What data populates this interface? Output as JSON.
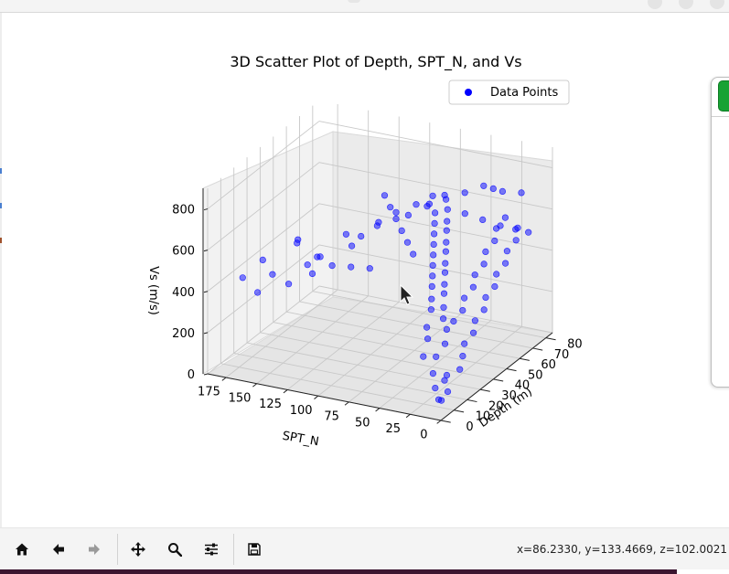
{
  "window": {
    "title": ""
  },
  "figure": {
    "title": "3D Scatter Plot of Depth, SPT_N, and Vs",
    "legend": {
      "label": "Data Points",
      "placement": "top-right"
    },
    "axes": {
      "x": {
        "label": "Depth (m)",
        "ticks": [
          "0",
          "10",
          "20",
          "30",
          "40",
          "50",
          "60",
          "70",
          "80"
        ]
      },
      "y": {
        "label": "SPT_N",
        "ticks": [
          "175",
          "150",
          "125",
          "100",
          "75",
          "50",
          "25",
          "0"
        ]
      },
      "z": {
        "label": "Vs (m/s)",
        "ticks": [
          "0",
          "200",
          "400",
          "600",
          "800"
        ]
      }
    }
  },
  "chart_data": {
    "type": "scatter",
    "projection": "3d",
    "title": "3D Scatter Plot of Depth, SPT_N, and Vs",
    "xlabel": "Depth (m)",
    "ylabel": "SPT_N",
    "zlabel": "Vs (m/s)",
    "xlim": [
      0,
      85
    ],
    "ylim": [
      0,
      190
    ],
    "zlim": [
      0,
      900
    ],
    "grid": true,
    "legend_placement": "top-right",
    "series": [
      {
        "name": "Data Points",
        "color": "#0000ff",
        "alpha": 0.5,
        "points": [
          [
            5,
            10,
            120
          ],
          [
            8,
            15,
            170
          ],
          [
            12,
            8,
            150
          ],
          [
            15,
            20,
            210
          ],
          [
            10,
            25,
            230
          ],
          [
            20,
            18,
            250
          ],
          [
            18,
            30,
            270
          ],
          [
            25,
            22,
            290
          ],
          [
            22,
            35,
            300
          ],
          [
            28,
            28,
            320
          ],
          [
            30,
            40,
            340
          ],
          [
            32,
            32,
            350
          ],
          [
            35,
            45,
            360
          ],
          [
            38,
            38,
            380
          ],
          [
            40,
            50,
            390
          ],
          [
            42,
            42,
            400
          ],
          [
            45,
            55,
            410
          ],
          [
            48,
            48,
            420
          ],
          [
            50,
            60,
            430
          ],
          [
            52,
            52,
            440
          ],
          [
            55,
            65,
            450
          ],
          [
            58,
            58,
            460
          ],
          [
            60,
            70,
            470
          ],
          [
            62,
            62,
            480
          ],
          [
            65,
            75,
            490
          ],
          [
            68,
            68,
            500
          ],
          [
            70,
            80,
            510
          ],
          [
            72,
            72,
            520
          ],
          [
            75,
            85,
            530
          ],
          [
            78,
            78,
            540
          ],
          [
            35,
            60,
            560
          ],
          [
            40,
            70,
            580
          ],
          [
            45,
            80,
            600
          ],
          [
            50,
            90,
            620
          ],
          [
            55,
            100,
            640
          ],
          [
            60,
            110,
            660
          ],
          [
            30,
            90,
            480
          ],
          [
            25,
            100,
            500
          ],
          [
            20,
            110,
            520
          ],
          [
            35,
            110,
            540
          ],
          [
            40,
            120,
            560
          ],
          [
            45,
            100,
            600
          ],
          [
            50,
            80,
            650
          ],
          [
            55,
            70,
            680
          ],
          [
            60,
            60,
            700
          ],
          [
            65,
            50,
            720
          ],
          [
            70,
            40,
            740
          ],
          [
            75,
            30,
            700
          ],
          [
            80,
            20,
            680
          ],
          [
            82,
            45,
            660
          ],
          [
            15,
            140,
            420
          ],
          [
            10,
            160,
            380
          ],
          [
            8,
            170,
            450
          ],
          [
            12,
            150,
            470
          ],
          [
            20,
            130,
            500
          ],
          [
            25,
            125,
            520
          ],
          [
            18,
            120,
            560
          ],
          [
            22,
            140,
            600
          ],
          [
            28,
            95,
            640
          ],
          [
            32,
            85,
            700
          ],
          [
            36,
            75,
            740
          ],
          [
            42,
            65,
            760
          ],
          [
            48,
            58,
            780
          ],
          [
            38,
            50,
            800
          ],
          [
            44,
            44,
            820
          ],
          [
            52,
            36,
            700
          ],
          [
            58,
            28,
            650
          ],
          [
            64,
            20,
            600
          ],
          [
            70,
            14,
            560
          ],
          [
            76,
            10,
            520
          ],
          [
            3,
            5,
            80
          ],
          [
            6,
            6,
            60
          ],
          [
            9,
            4,
            90
          ],
          [
            14,
            12,
            110
          ],
          [
            20,
            6,
            140
          ],
          [
            26,
            10,
            170
          ],
          [
            31,
            14,
            200
          ],
          [
            36,
            12,
            230
          ],
          [
            41,
            16,
            260
          ],
          [
            46,
            14,
            290
          ],
          [
            51,
            18,
            320
          ],
          [
            56,
            16,
            350
          ],
          [
            61,
            20,
            380
          ],
          [
            66,
            18,
            410
          ],
          [
            71,
            22,
            440
          ],
          [
            76,
            20,
            470
          ],
          [
            81,
            24,
            500
          ],
          [
            34,
            26,
            280
          ],
          [
            39,
            24,
            310
          ],
          [
            44,
            28,
            340
          ],
          [
            49,
            26,
            370
          ],
          [
            54,
            30,
            400
          ],
          [
            59,
            28,
            430
          ],
          [
            64,
            32,
            460
          ],
          [
            69,
            30,
            490
          ],
          [
            74,
            34,
            520
          ],
          [
            79,
            32,
            550
          ],
          [
            33,
            140,
            380
          ],
          [
            28,
            175,
            430
          ],
          [
            40,
            160,
            470
          ]
        ]
      }
    ]
  },
  "toolbar": {
    "buttons": [
      {
        "name": "home",
        "icon": "home-icon"
      },
      {
        "name": "back",
        "icon": "arrow-left-icon"
      },
      {
        "name": "forward",
        "icon": "arrow-right-icon"
      },
      {
        "name": "pan",
        "icon": "move-icon"
      },
      {
        "name": "zoom",
        "icon": "zoom-icon"
      },
      {
        "name": "configure",
        "icon": "sliders-icon"
      },
      {
        "name": "save",
        "icon": "save-icon"
      }
    ],
    "coordinates": "x=86.2330, y=133.4669, z=102.0021"
  },
  "colors": {
    "marker": "#0000ff",
    "accent_green": "#17a234",
    "taskbar": "#3b1630"
  }
}
